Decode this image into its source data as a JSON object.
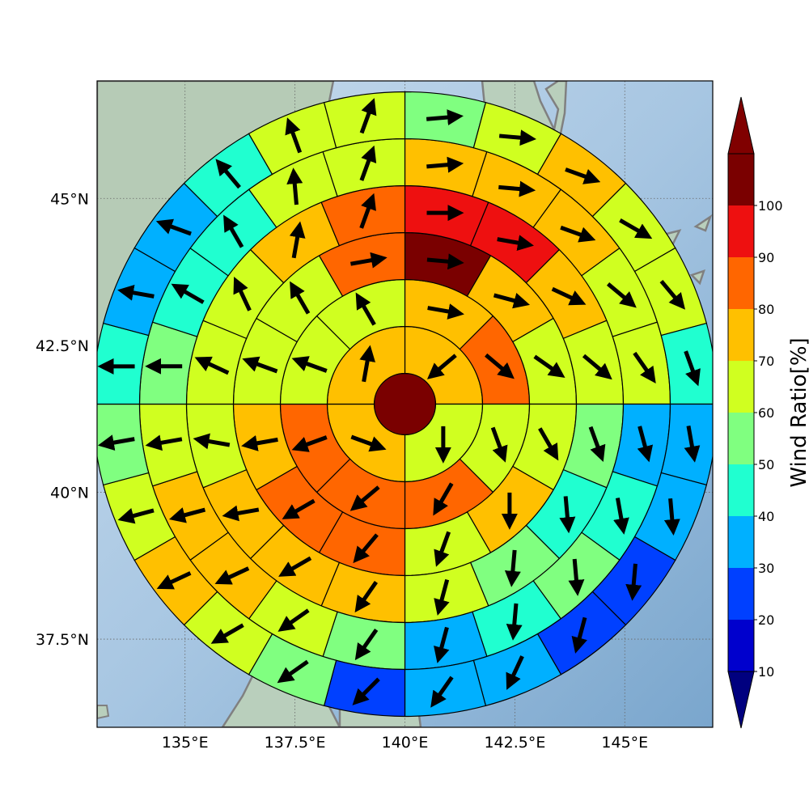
{
  "map": {
    "lon_range": [
      133,
      147
    ],
    "lat_range": [
      36,
      47
    ],
    "center": {
      "lon": 140,
      "lat": 41.5
    },
    "x_ticks": [
      {
        "value": 135,
        "label": "135°E"
      },
      {
        "value": 137.5,
        "label": "137.5°E"
      },
      {
        "value": 140,
        "label": "140°E"
      },
      {
        "value": 142.5,
        "label": "142.5°E"
      },
      {
        "value": 145,
        "label": "145°E"
      }
    ],
    "y_ticks": [
      {
        "value": 45,
        "label": "45°N"
      },
      {
        "value": 42.5,
        "label": "42.5°N"
      },
      {
        "value": 40,
        "label": "40°N"
      },
      {
        "value": 37.5,
        "label": "37.5°N"
      }
    ],
    "colors": {
      "ocean": "#a8c8e4",
      "land": "#b8cfbd",
      "coastline": "#808080"
    }
  },
  "colorbar": {
    "label": "Wind Ratio[%]",
    "ticks": [
      "10",
      "20",
      "30",
      "40",
      "50",
      "60",
      "70",
      "80",
      "90",
      "100"
    ],
    "colors": [
      "#0000cd",
      "#0040ff",
      "#00b0ff",
      "#20ffd0",
      "#80ff80",
      "#d0ff20",
      "#ffc000",
      "#ff6600",
      "#ee1010",
      "#7a0000"
    ],
    "under_color": "#00007f",
    "over_color": "#800000"
  },
  "wind_rings": {
    "center_value": 100,
    "rings": [
      {
        "sectors": 4,
        "values": [
          75,
          65,
          75,
          75
        ],
        "dirs": [
          230,
          180,
          110,
          10
        ]
      },
      {
        "sectors": 8,
        "values": [
          75,
          80,
          60,
          85,
          85,
          85,
          60,
          60
        ],
        "dirs": [
          100,
          130,
          160,
          210,
          230,
          250,
          290,
          330
        ]
      },
      {
        "sectors": 12,
        "values": [
          100,
          75,
          65,
          60,
          75,
          65,
          80,
          85,
          70,
          60,
          60,
          80
        ],
        "dirs": [
          95,
          105,
          125,
          150,
          180,
          200,
          220,
          240,
          260,
          290,
          330,
          80
        ]
      },
      {
        "sectors": 16,
        "values": [
          90,
          90,
          75,
          60,
          55,
          40,
          50,
          60,
          70,
          70,
          70,
          60,
          60,
          60,
          70,
          80
        ],
        "dirs": [
          90,
          100,
          115,
          130,
          160,
          175,
          185,
          195,
          215,
          240,
          260,
          280,
          295,
          335,
          10,
          20
        ]
      },
      {
        "sectors": 20,
        "values": [
          75,
          75,
          70,
          60,
          60,
          30,
          40,
          50,
          40,
          30,
          50,
          60,
          70,
          70,
          60,
          50,
          40,
          40,
          60,
          60
        ],
        "dirs": [
          85,
          95,
          110,
          130,
          145,
          165,
          170,
          175,
          185,
          195,
          215,
          235,
          245,
          255,
          260,
          270,
          300,
          330,
          355,
          20
        ]
      },
      {
        "sectors": 24,
        "values": [
          50,
          60,
          70,
          60,
          60,
          40,
          30,
          30,
          20,
          20,
          30,
          30,
          20,
          50,
          60,
          70,
          60,
          50,
          40,
          30,
          30,
          40,
          60,
          60
        ],
        "dirs": [
          85,
          95,
          110,
          120,
          140,
          160,
          170,
          175,
          185,
          195,
          205,
          215,
          225,
          235,
          240,
          245,
          255,
          260,
          270,
          280,
          290,
          320,
          340,
          20
        ]
      }
    ]
  }
}
